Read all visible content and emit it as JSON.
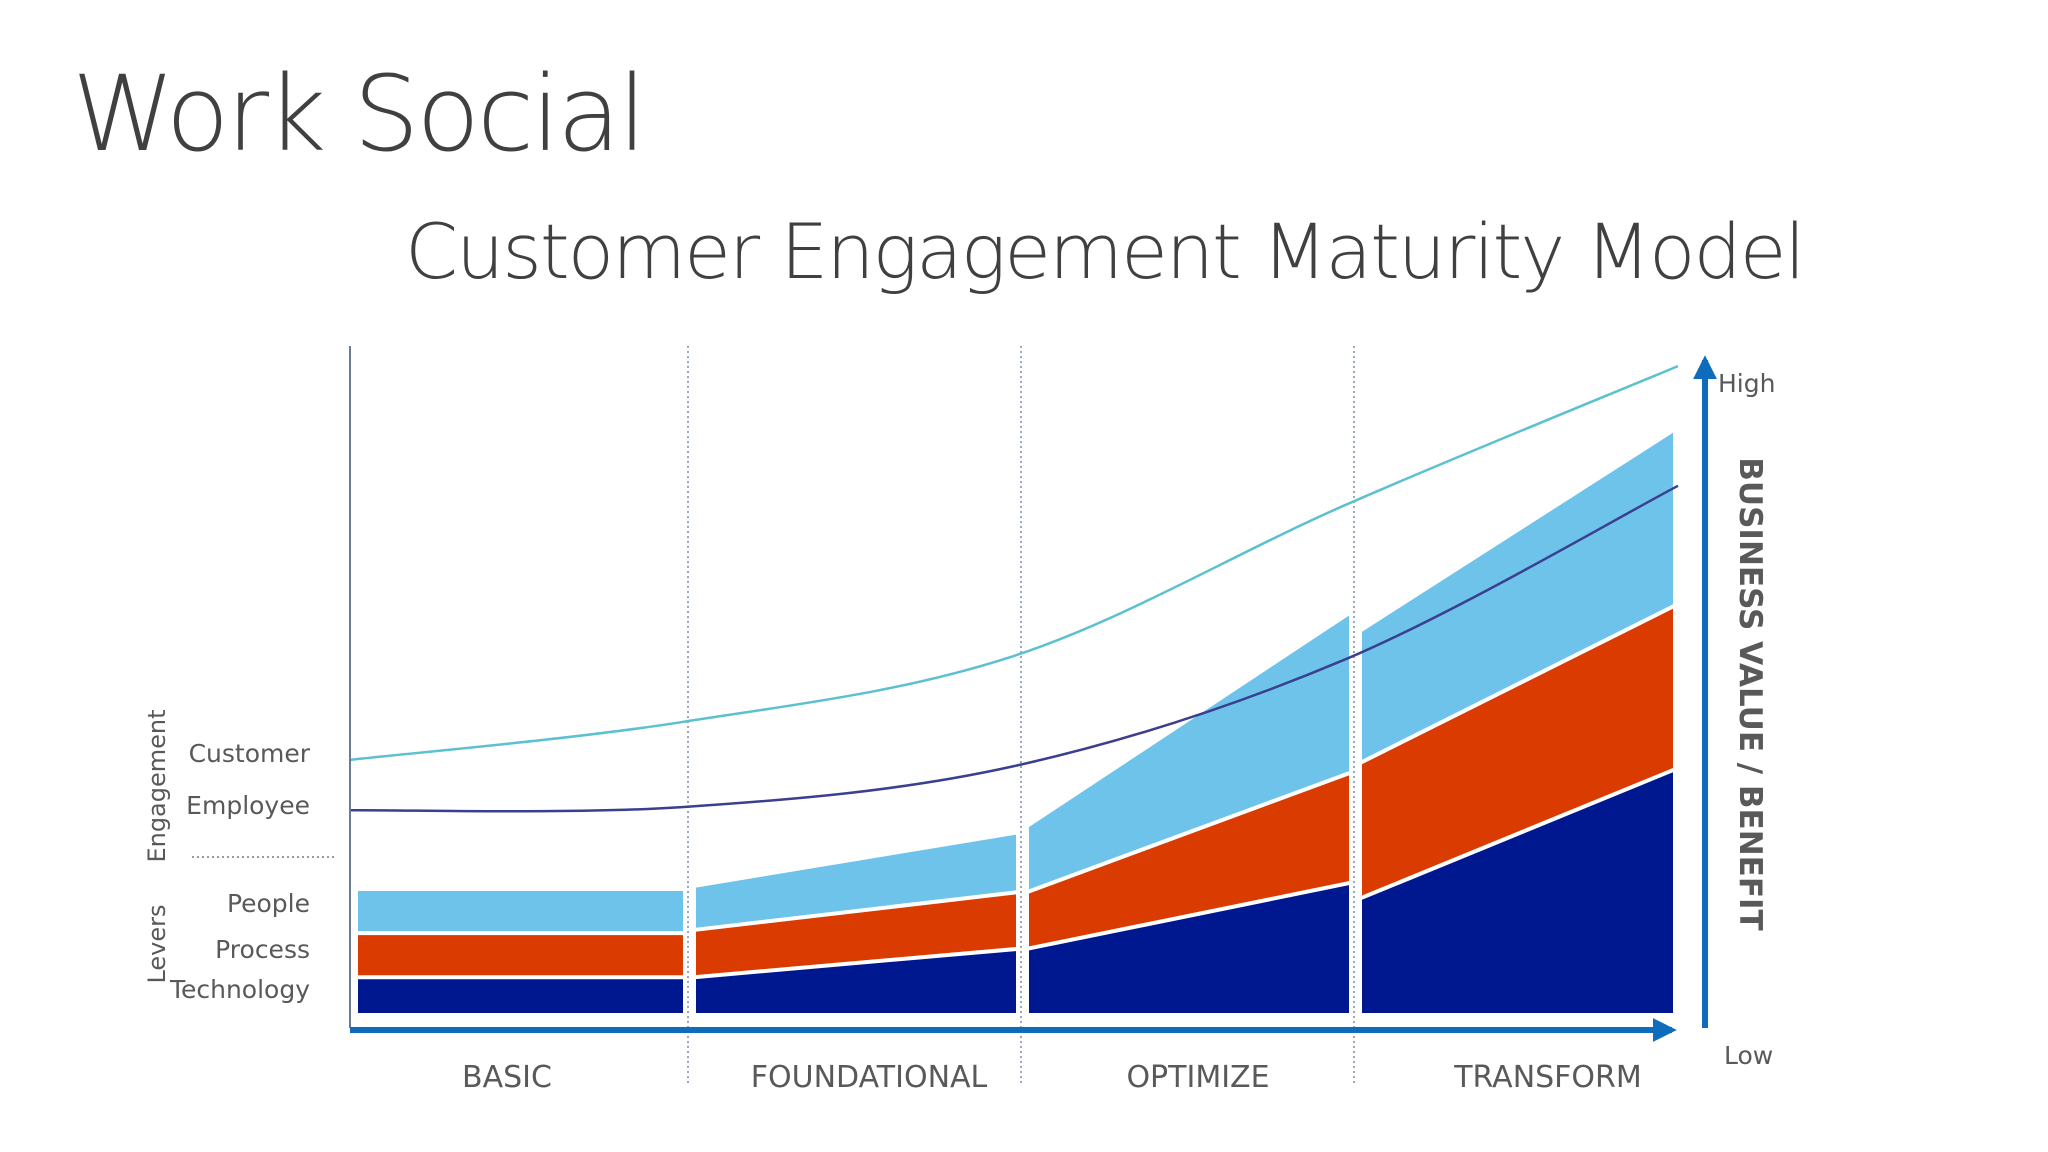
{
  "slide": {
    "title": "Work Social"
  },
  "chart_data": {
    "type": "area",
    "title": "Customer Engagement Maturity Model",
    "stages": [
      "BASIC",
      "FOUNDATIONAL",
      "OPTIMIZE",
      "TRANSFORM"
    ],
    "value_axis": {
      "label": "BUSINESS VALUE / BENEFIT",
      "high_label": "High",
      "low_label": "Low",
      "range": [
        0,
        100
      ]
    },
    "engagement": {
      "group_label": "Engagement",
      "lines": [
        {
          "name": "Customer",
          "color": "#5BC0D0",
          "points": [
            [
              0,
              40.5
            ],
            [
              1,
              46.5
            ],
            [
              2,
              57
            ],
            [
              3,
              81
            ],
            [
              4,
              103
            ]
          ]
        },
        {
          "name": "Employee",
          "color": "#3A3F8F",
          "points": [
            [
              0,
              32.5
            ],
            [
              1,
              33
            ],
            [
              2,
              39.5
            ],
            [
              3,
              56.5
            ],
            [
              4,
              84
            ]
          ]
        }
      ]
    },
    "levers": {
      "group_label": "Levers",
      "series": [
        {
          "name": "Technology",
          "color": "#00188F",
          "segments": [
            [
              [
                0,
                6
              ],
              [
                1,
                6
              ]
            ],
            [
              [
                0,
                6
              ],
              [
                1,
                10.5
              ]
            ],
            [
              [
                0,
                10.5
              ],
              [
                1,
                21
              ]
            ],
            [
              [
                0,
                18.5
              ],
              [
                1,
                39
              ]
            ]
          ]
        },
        {
          "name": "Process",
          "color": "#DA3B01",
          "segments": [
            [
              [
                0,
                13
              ],
              [
                1,
                13
              ]
            ],
            [
              [
                0,
                13.5
              ],
              [
                1,
                19.5
              ]
            ],
            [
              [
                0,
                19.5
              ],
              [
                1,
                38.5
              ]
            ],
            [
              [
                0,
                40
              ],
              [
                1,
                65
              ]
            ]
          ]
        },
        {
          "name": "People",
          "color": "#6EC3EA",
          "segments": [
            [
              [
                0,
                20
              ],
              [
                1,
                20
              ]
            ],
            [
              [
                0,
                20.5
              ],
              [
                1,
                29
              ]
            ],
            [
              [
                0,
                30
              ],
              [
                1,
                64
              ]
            ],
            [
              [
                0,
                61
              ],
              [
                1,
                93
              ]
            ]
          ]
        }
      ]
    }
  },
  "colors": {
    "axis_arrow": "#0F6CBD",
    "text": "#595959",
    "title": "#404040"
  }
}
